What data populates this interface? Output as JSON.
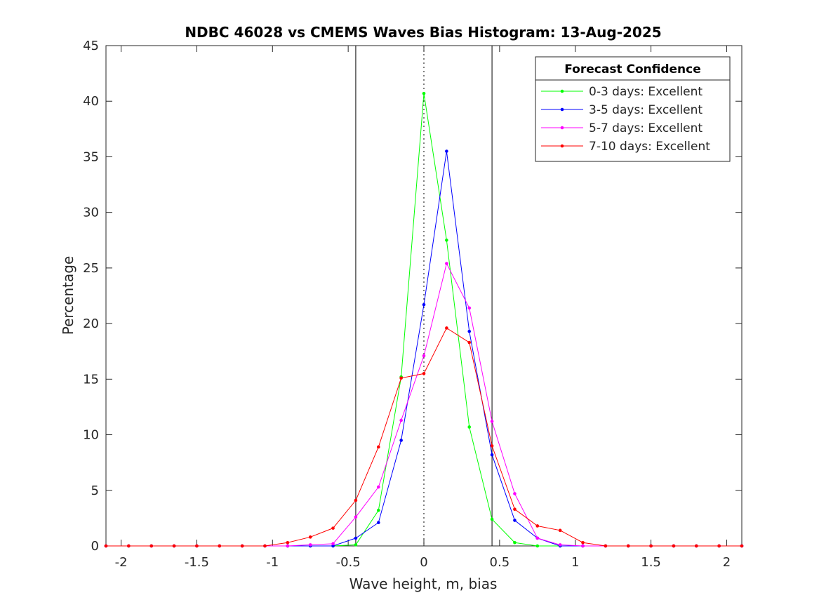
{
  "chart_data": {
    "type": "line",
    "title": "NDBC 46028 vs CMEMS Waves Bias Histogram: 13-Aug-2025",
    "xlabel": "Wave height, m, bias",
    "ylabel": "Percentage",
    "xlim": [
      -2.1,
      2.1
    ],
    "ylim": [
      0,
      45
    ],
    "xticks": [
      -2,
      -1.5,
      -1,
      -0.5,
      0,
      0.5,
      1,
      1.5,
      2
    ],
    "xtick_labels": [
      "-2",
      "-1.5",
      "-1",
      "-0.5",
      "0",
      "0.5",
      "1",
      "1.5",
      "2"
    ],
    "yticks": [
      0,
      5,
      10,
      15,
      20,
      25,
      30,
      35,
      40,
      45
    ],
    "ytick_labels": [
      "0",
      "5",
      "10",
      "15",
      "20",
      "25",
      "30",
      "35",
      "40",
      "45"
    ],
    "grid": false,
    "legend": {
      "title": "Forecast Confidence",
      "placement": "top-right"
    },
    "reference_lines": {
      "solid_x": [
        -0.45,
        0.45
      ],
      "dotted_x": [
        0
      ]
    },
    "x": [
      -2.1,
      -1.95,
      -1.8,
      -1.65,
      -1.5,
      -1.35,
      -1.2,
      -1.05,
      -0.9,
      -0.75,
      -0.6,
      -0.45,
      -0.3,
      -0.15,
      0,
      0.15,
      0.3,
      0.45,
      0.6,
      0.75,
      0.9,
      1.05,
      1.2,
      1.35,
      1.5,
      1.65,
      1.8,
      1.95,
      2.1
    ],
    "series": [
      {
        "name": "0-3 days: Excellent",
        "color": "#00ff00",
        "values": [
          0,
          0,
          0,
          0,
          0,
          0,
          0,
          0,
          0,
          0,
          0,
          0.1,
          3.2,
          15.2,
          40.7,
          27.5,
          10.7,
          2.4,
          0.3,
          0,
          0,
          0,
          0,
          0,
          0,
          0,
          0,
          0,
          0
        ]
      },
      {
        "name": "3-5 days: Excellent",
        "color": "#0000ff",
        "values": [
          0,
          0,
          0,
          0,
          0,
          0,
          0,
          0,
          0,
          0,
          0,
          0.7,
          2.1,
          9.5,
          21.7,
          35.5,
          19.3,
          8.2,
          2.3,
          0.7,
          0,
          0,
          0,
          0,
          0,
          0,
          0,
          0,
          0
        ]
      },
      {
        "name": "5-7 days: Excellent",
        "color": "#ff00ff",
        "values": [
          0,
          0,
          0,
          0,
          0,
          0,
          0,
          0,
          0,
          0.1,
          0.2,
          2.6,
          5.3,
          11.3,
          17.1,
          25.4,
          21.4,
          11.2,
          4.7,
          0.7,
          0.1,
          0,
          0,
          0,
          0,
          0,
          0,
          0,
          0
        ]
      },
      {
        "name": "7-10 days: Excellent",
        "color": "#ff0000",
        "values": [
          0,
          0,
          0,
          0,
          0,
          0,
          0,
          0,
          0.3,
          0.8,
          1.6,
          4.1,
          8.9,
          15.1,
          15.5,
          19.6,
          18.3,
          9.0,
          3.3,
          1.8,
          1.4,
          0.3,
          0,
          0,
          0,
          0,
          0,
          0,
          0
        ]
      }
    ]
  }
}
